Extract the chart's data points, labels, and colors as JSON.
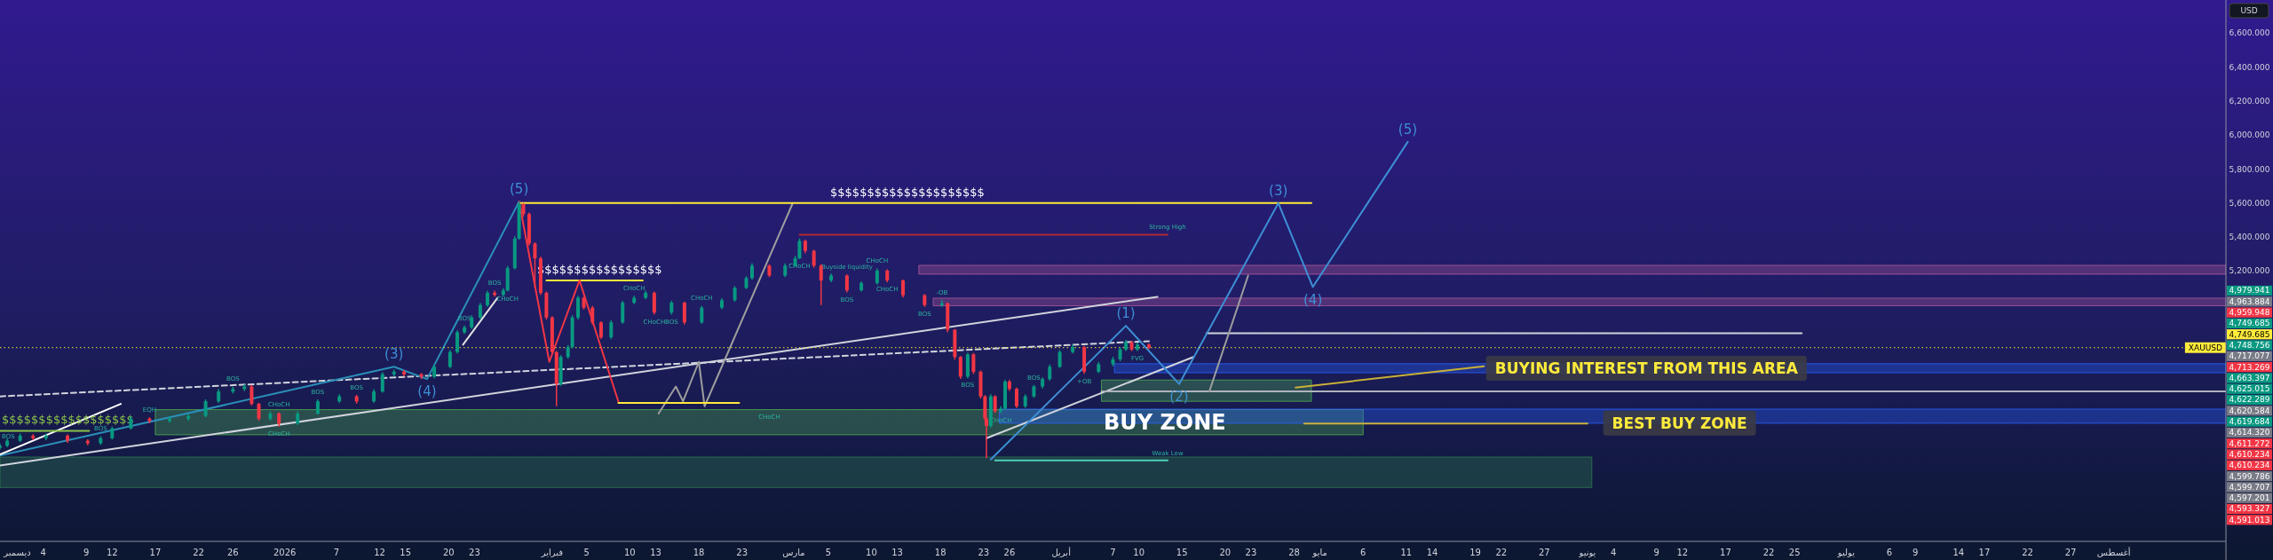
{
  "chart_data": {
    "type": "candlestick",
    "ylabel": "USD",
    "xlim": [
      "2025-11-29",
      "2026-08-14"
    ],
    "ylim": [
      3610,
      6795
    ],
    "xticks": [
      {
        "value": "2025-12-01",
        "label": "ديسمبر"
      },
      {
        "value": "2025-12-04",
        "label": "4"
      },
      {
        "value": "2025-12-09",
        "label": "9"
      },
      {
        "value": "2025-12-12",
        "label": "12"
      },
      {
        "value": "2025-12-17",
        "label": "17"
      },
      {
        "value": "2025-12-22",
        "label": "22"
      },
      {
        "value": "2025-12-26",
        "label": "26"
      },
      {
        "value": "2026-01-01",
        "label": "2026"
      },
      {
        "value": "2026-01-07",
        "label": "7"
      },
      {
        "value": "2026-01-12",
        "label": "12"
      },
      {
        "value": "2026-01-15",
        "label": "15"
      },
      {
        "value": "2026-01-20",
        "label": "20"
      },
      {
        "value": "2026-01-23",
        "label": "23"
      },
      {
        "value": "2026-02-01",
        "label": "فبراير"
      },
      {
        "value": "2026-02-05",
        "label": "5"
      },
      {
        "value": "2026-02-10",
        "label": "10"
      },
      {
        "value": "2026-02-13",
        "label": "13"
      },
      {
        "value": "2026-02-18",
        "label": "18"
      },
      {
        "value": "2026-02-23",
        "label": "23"
      },
      {
        "value": "2026-03-01",
        "label": "مارس"
      },
      {
        "value": "2026-03-05",
        "label": "5"
      },
      {
        "value": "2026-03-10",
        "label": "10"
      },
      {
        "value": "2026-03-13",
        "label": "13"
      },
      {
        "value": "2026-03-18",
        "label": "18"
      },
      {
        "value": "2026-03-23",
        "label": "23"
      },
      {
        "value": "2026-03-26",
        "label": "26"
      },
      {
        "value": "2026-04-01",
        "label": "أبريل"
      },
      {
        "value": "2026-04-07",
        "label": "7"
      },
      {
        "value": "2026-04-10",
        "label": "10"
      },
      {
        "value": "2026-04-15",
        "label": "15"
      },
      {
        "value": "2026-04-20",
        "label": "20"
      },
      {
        "value": "2026-04-23",
        "label": "23"
      },
      {
        "value": "2026-04-28",
        "label": "28"
      },
      {
        "value": "2026-05-01",
        "label": "مايو"
      },
      {
        "value": "2026-05-06",
        "label": "6"
      },
      {
        "value": "2026-05-11",
        "label": "11"
      },
      {
        "value": "2026-05-14",
        "label": "14"
      },
      {
        "value": "2026-05-19",
        "label": "19"
      },
      {
        "value": "2026-05-22",
        "label": "22"
      },
      {
        "value": "2026-05-27",
        "label": "27"
      },
      {
        "value": "2026-06-01",
        "label": "يونيو"
      },
      {
        "value": "2026-06-04",
        "label": "4"
      },
      {
        "value": "2026-06-09",
        "label": "9"
      },
      {
        "value": "2026-06-12",
        "label": "12"
      },
      {
        "value": "2026-06-17",
        "label": "17"
      },
      {
        "value": "2026-06-22",
        "label": "22"
      },
      {
        "value": "2026-06-25",
        "label": "25"
      },
      {
        "value": "2026-07-01",
        "label": "يوليو"
      },
      {
        "value": "2026-07-06",
        "label": "6"
      },
      {
        "value": "2026-07-09",
        "label": "9"
      },
      {
        "value": "2026-07-14",
        "label": "14"
      },
      {
        "value": "2026-07-17",
        "label": "17"
      },
      {
        "value": "2026-07-22",
        "label": "22"
      },
      {
        "value": "2026-07-27",
        "label": "27"
      },
      {
        "value": "2026-08-01",
        "label": "أغسطس"
      }
    ],
    "yticks": [
      {
        "value": 5200,
        "label": "5,200.000"
      },
      {
        "value": 5400,
        "label": "5,400.000"
      },
      {
        "value": 5600,
        "label": "5,600.000"
      },
      {
        "value": 5800,
        "label": "5,800.000"
      },
      {
        "value": 6000,
        "label": "6,000.000"
      },
      {
        "value": 6200,
        "label": "6,200.000"
      },
      {
        "value": 6400,
        "label": "6,400.000"
      },
      {
        "value": 6600,
        "label": "6,600.000"
      }
    ],
    "x": [
      "2025-11-29T00:00",
      "2025-11-29T20:00",
      "2025-12-01T08:00",
      "2025-12-02T20:00",
      "2025-12-04T08:00",
      "2025-12-06T20:00",
      "2025-12-09T04:00",
      "2025-12-10T16:00",
      "2025-12-12T00:00",
      "2025-12-14T04:00",
      "2025-12-16T08:00",
      "2025-12-18T16:00",
      "2025-12-20T20:00",
      "2025-12-22T20:00",
      "2025-12-24T08:00",
      "2025-12-26T00:00",
      "2025-12-27T08:00",
      "2025-12-28T04:00",
      "2025-12-29T00:00",
      "2025-12-30T08:00",
      "2025-12-31T08:00",
      "2026-01-02T12:00",
      "2026-01-04T20:00",
      "2026-01-07T08:00",
      "2026-01-09T08:00",
      "2026-01-11T08:00",
      "2026-01-12T08:00",
      "2026-01-13T16:00",
      "2026-01-14T20:00",
      "2026-01-16T20:00",
      "2026-01-18T08:00",
      "2026-01-20T04:00",
      "2026-01-21T00:00",
      "2026-01-21T20:00",
      "2026-01-22T16:00",
      "2026-01-23T16:00",
      "2026-01-24T12:00",
      "2026-01-25T08:00",
      "2026-01-26T08:00",
      "2026-01-26T20:00",
      "2026-01-27T16:00",
      "2026-01-28T04:00",
      "2026-01-28T16:00",
      "2026-01-29T08:00",
      "2026-01-30T00:00",
      "2026-01-30T16:00",
      "2026-01-31T08:00",
      "2026-02-01T00:00",
      "2026-02-01T12:00",
      "2026-02-02T00:00",
      "2026-02-02T20:00",
      "2026-02-03T08:00",
      "2026-02-04T00:00",
      "2026-02-04T16:00",
      "2026-02-05T16:00",
      "2026-02-06T16:00",
      "2026-02-07T20:00",
      "2026-02-09T04:00",
      "2026-02-10T12:00",
      "2026-02-11T20:00",
      "2026-02-12T20:00",
      "2026-02-14T20:00",
      "2026-02-16T08:00",
      "2026-02-18T08:00",
      "2026-02-20T16:00",
      "2026-02-22T04:00",
      "2026-02-23T12:00",
      "2026-02-24T04:00",
      "2026-02-26T04:00",
      "2026-02-28T00:00",
      "2026-03-01T04:00",
      "2026-03-01T16:00",
      "2026-03-02T08:00",
      "2026-03-03T08:00",
      "2026-03-04T04:00",
      "2026-03-05T08:00",
      "2026-03-07T04:00",
      "2026-03-08T20:00",
      "2026-03-10T16:00",
      "2026-03-11T20:00",
      "2026-03-13T16:00",
      "2026-03-16T04:00",
      "2026-03-18T04:00",
      "2026-03-18T20:00",
      "2026-03-19T16:00",
      "2026-03-20T08:00",
      "2026-03-21T04:00",
      "2026-03-21T20:00",
      "2026-03-22T16:00",
      "2026-03-23T04:00",
      "2026-03-23T08:00",
      "2026-03-23T20:00",
      "2026-03-24T08:00",
      "2026-03-25T00:00",
      "2026-03-25T12:00",
      "2026-03-26T00:00",
      "2026-03-26T20:00",
      "2026-03-27T20:00",
      "2026-03-28T20:00",
      "2026-03-29T20:00",
      "2026-03-30T16:00",
      "2026-03-31T20:00",
      "2026-04-02T08:00",
      "2026-04-03T16:00",
      "2026-04-05T08:00",
      "2026-04-07T00:00",
      "2026-04-07T20:00",
      "2026-04-08T12:00",
      "2026-04-09T04:00",
      "2026-04-09T20:00",
      "2026-04-11T04:00"
    ],
    "ohlc": [
      [
        4160,
        4185,
        4150,
        4173
      ],
      [
        4173,
        4215,
        4165,
        4202
      ],
      [
        4202,
        4245,
        4195,
        4231
      ],
      [
        4231,
        4240,
        4205,
        4217
      ],
      [
        4217,
        4245,
        4205,
        4231
      ],
      [
        4231,
        4240,
        4190,
        4202
      ],
      [
        4202,
        4210,
        4175,
        4187
      ],
      [
        4187,
        4228,
        4178,
        4217
      ],
      [
        4217,
        4285,
        4210,
        4275
      ],
      [
        4275,
        4345,
        4268,
        4332
      ],
      [
        4332,
        4340,
        4305,
        4318
      ],
      [
        4318,
        4345,
        4308,
        4332
      ],
      [
        4332,
        4360,
        4320,
        4347
      ],
      [
        4347,
        4445,
        4340,
        4434
      ],
      [
        4434,
        4505,
        4425,
        4492
      ],
      [
        4492,
        4520,
        4480,
        4506
      ],
      [
        4506,
        4535,
        4495,
        4521
      ],
      [
        4521,
        4530,
        4410,
        4419
      ],
      [
        4419,
        4425,
        4320,
        4332
      ],
      [
        4332,
        4375,
        4320,
        4362
      ],
      [
        4362,
        4370,
        4285,
        4303
      ],
      [
        4303,
        4375,
        4295,
        4362
      ],
      [
        4362,
        4445,
        4355,
        4434
      ],
      [
        4434,
        4475,
        4425,
        4463
      ],
      [
        4463,
        4472,
        4420,
        4434
      ],
      [
        4434,
        4505,
        4425,
        4492
      ],
      [
        4492,
        4605,
        4485,
        4593
      ],
      [
        4593,
        4620,
        4580,
        4608
      ],
      [
        4608,
        4618,
        4580,
        4593
      ],
      [
        4593,
        4600,
        4565,
        4579
      ],
      [
        4579,
        4648,
        4570,
        4637
      ],
      [
        4637,
        4735,
        4630,
        4724
      ],
      [
        4724,
        4852,
        4715,
        4840
      ],
      [
        4840,
        4880,
        4830,
        4869
      ],
      [
        4869,
        4940,
        4860,
        4927
      ],
      [
        4927,
        5012,
        4918,
        5000
      ],
      [
        5000,
        5085,
        4990,
        5072
      ],
      [
        5072,
        5085,
        5050,
        5060
      ],
      [
        5060,
        5100,
        5050,
        5086
      ],
      [
        5086,
        5230,
        5080,
        5217
      ],
      [
        5217,
        5405,
        5210,
        5391
      ],
      [
        5391,
        5609,
        5385,
        5594
      ],
      [
        5594,
        5600,
        5520,
        5536
      ],
      [
        5536,
        5545,
        5350,
        5362
      ],
      [
        5362,
        5370,
        5100,
        5275
      ],
      [
        5275,
        5285,
        5060,
        5072
      ],
      [
        5072,
        5080,
        4915,
        4927
      ],
      [
        4927,
        4935,
        4710,
        4724
      ],
      [
        4724,
        4730,
        4405,
        4536
      ],
      [
        4536,
        4705,
        4525,
        4695
      ],
      [
        4695,
        4765,
        4685,
        4753
      ],
      [
        4753,
        4940,
        4745,
        4927
      ],
      [
        4927,
        5055,
        4915,
        5043
      ],
      [
        5043,
        5050,
        4975,
        4985
      ],
      [
        4985,
        4995,
        4885,
        4898
      ],
      [
        4898,
        4905,
        4800,
        4811
      ],
      [
        4811,
        4910,
        4800,
        4898
      ],
      [
        4898,
        5025,
        4890,
        5014
      ],
      [
        5014,
        5055,
        5005,
        5043
      ],
      [
        5043,
        5085,
        5035,
        5072
      ],
      [
        5072,
        5080,
        4945,
        4956
      ],
      [
        4956,
        5025,
        4945,
        5014
      ],
      [
        5014,
        5020,
        4885,
        4898
      ],
      [
        4898,
        4995,
        4890,
        4985
      ],
      [
        4985,
        5040,
        4975,
        5029
      ],
      [
        5029,
        5112,
        5020,
        5101
      ],
      [
        5101,
        5170,
        5095,
        5159
      ],
      [
        5159,
        5245,
        5150,
        5232
      ],
      [
        5232,
        5240,
        5165,
        5174
      ],
      [
        5174,
        5245,
        5165,
        5232
      ],
      [
        5232,
        5290,
        5225,
        5275
      ],
      [
        5275,
        5391,
        5270,
        5377
      ],
      [
        5377,
        5385,
        5305,
        5319
      ],
      [
        5319,
        5325,
        5220,
        5232
      ],
      [
        5232,
        5240,
        5000,
        5145
      ],
      [
        5145,
        5185,
        5135,
        5174
      ],
      [
        5174,
        5180,
        5075,
        5087
      ],
      [
        5087,
        5140,
        5080,
        5130
      ],
      [
        5130,
        5215,
        5120,
        5203
      ],
      [
        5203,
        5210,
        5135,
        5145
      ],
      [
        5145,
        5150,
        5045,
        5058
      ],
      [
        5058,
        5065,
        4990,
        5000
      ],
      [
        5000,
        5030,
        4990,
        5010
      ],
      [
        5010,
        5015,
        4840,
        4855
      ],
      [
        4855,
        4860,
        4680,
        4695
      ],
      [
        4695,
        4700,
        4565,
        4579
      ],
      [
        4579,
        4720,
        4570,
        4710
      ],
      [
        4710,
        4718,
        4595,
        4608
      ],
      [
        4608,
        4615,
        4450,
        4463
      ],
      [
        4463,
        4470,
        4320,
        4332
      ],
      [
        4332,
        4340,
        4100,
        4289
      ],
      [
        4289,
        4475,
        4280,
        4463
      ],
      [
        4463,
        4470,
        4365,
        4376
      ],
      [
        4376,
        4405,
        4365,
        4391
      ],
      [
        4391,
        4560,
        4385,
        4550
      ],
      [
        4550,
        4560,
        4495,
        4507
      ],
      [
        4507,
        4515,
        4395,
        4405
      ],
      [
        4405,
        4475,
        4395,
        4463
      ],
      [
        4463,
        4530,
        4455,
        4521
      ],
      [
        4521,
        4575,
        4510,
        4565
      ],
      [
        4565,
        4650,
        4555,
        4637
      ],
      [
        4637,
        4735,
        4630,
        4724
      ],
      [
        4724,
        4768,
        4715,
        4753
      ],
      [
        4753,
        4760,
        4595,
        4608
      ],
      [
        4608,
        4665,
        4600,
        4652
      ],
      [
        4652,
        4695,
        4640,
        4681
      ],
      [
        4681,
        4750,
        4670,
        4739
      ],
      [
        4739,
        4795,
        4730,
        4782
      ],
      [
        4782,
        4790,
        4730,
        4739
      ],
      [
        4739,
        4780,
        4730,
        4768
      ],
      [
        4768,
        4775,
        4740,
        4750
      ]
    ],
    "series": [
      {
        "type": "line",
        "x": [
          "2025-11-29",
          "2026-06-01T12:00"
        ],
        "values": [
          null,
          null
        ],
        "upper": [
          4106,
          4106
        ],
        "lower": [
          3927,
          3927
        ],
        "color": "#2e7d4f"
      },
      {
        "type": "line",
        "x": [
          "2025-12-17",
          "2026-05-06"
        ],
        "values": [
          null,
          null
        ],
        "upper": [
          4385,
          4385
        ],
        "lower": [
          4237,
          4237
        ],
        "color": "#4caf50"
      },
      {
        "type": "line",
        "x": [
          "2026-04-05T16:00",
          "2026-04-30"
        ],
        "values": [
          null,
          null
        ],
        "upper": [
          4559,
          4559
        ],
        "lower": [
          4434,
          4434
        ],
        "color": "#4caf50"
      },
      {
        "type": "line",
        "x": [
          "2026-04-07T04:00",
          "2026-08-14"
        ],
        "values": [
          null,
          null
        ],
        "upper": [
          4655,
          4655
        ],
        "lower": [
          4602,
          4602
        ],
        "color": "#2962ff"
      },
      {
        "type": "line",
        "x": [
          "2026-03-24T20:00",
          "2026-08-14"
        ],
        "values": [
          null,
          null
        ],
        "upper": [
          4388,
          4388
        ],
        "lower": [
          4305,
          4305
        ],
        "color": "#2962ff"
      },
      {
        "type": "line",
        "x": [
          "2026-03-15T12:00",
          "2026-08-14"
        ],
        "values": [
          null,
          null
        ],
        "upper": [
          5234,
          5234
        ],
        "lower": [
          5182,
          5182
        ],
        "color": "#b05a9c"
      },
      {
        "type": "line",
        "x": [
          "2026-03-17T04:00",
          "2026-08-14"
        ],
        "values": [
          null,
          null
        ],
        "upper": [
          5041,
          5041
        ],
        "lower": [
          4996,
          4996
        ],
        "color": "#b05a9c"
      },
      {
        "type": "line",
        "x": [
          "2025-11-29",
          "2026-04-12T04:00"
        ],
        "values": [
          4057,
          5049
        ],
        "color": "#d1d4dc"
      },
      {
        "type": "line",
        "x": [
          "2025-11-29",
          "2026-04-11T04:00"
        ],
        "values": [
          4463,
          4788
        ],
        "color": "#d1d4dc",
        "line_style": "dashed"
      },
      {
        "type": "line",
        "x": [
          "2026-03-23T08:00",
          "2026-04-16T08:00"
        ],
        "values": [
          4217,
          4695
        ],
        "color": "#d1d4dc"
      },
      {
        "type": "line",
        "x": [
          "2026-04-17T20:00",
          "2026-06-25T20:00"
        ],
        "values": [
          4834,
          4834
        ],
        "color": "#d1d4dc"
      },
      {
        "type": "line",
        "x": [
          "2026-04-05T16:00",
          "2026-08-14"
        ],
        "values": [
          4492,
          4492
        ],
        "color": "#b0b3bc"
      },
      {
        "type": "line",
        "x": [
          "2026-03-01T16:00",
          "2026-04-13T08:00"
        ],
        "values": [
          5414,
          5414
        ],
        "color": "#b22833"
      },
      {
        "type": "line",
        "x": [
          "2026-03-24T08:00",
          "2026-04-13T08:00"
        ],
        "values": [
          4086,
          4086
        ],
        "color": "#4dd0b5"
      },
      {
        "type": "line",
        "x": [
          "2025-11-29",
          "2026-01-13T16:00",
          "2026-01-17T12:00",
          "2026-01-28T04:00"
        ],
        "values": [
          4115,
          4637,
          4565,
          5609
        ],
        "color": "#2a8fb8"
      },
      {
        "type": "line",
        "x": [
          "2025-11-29",
          "2025-12-13"
        ],
        "values": [
          4121,
          4419
        ],
        "color": "#ffffff"
      },
      {
        "type": "line",
        "x": [
          "2026-01-21T16:00",
          "2026-01-25T16:00"
        ],
        "values": [
          4767,
          5043
        ],
        "color": "#e0e0e0"
      },
      {
        "type": "line",
        "x": [
          "2026-02-13T08:00",
          "2026-02-15T08:00",
          "2026-02-16T04:00",
          "2026-02-18T00:00",
          "2026-02-18T16:00",
          "2026-02-28T20:00"
        ],
        "values": [
          4362,
          4521,
          4434,
          4666,
          4405,
          5594
        ],
        "color": "#9e9e9e"
      },
      {
        "type": "line",
        "x": [
          "2026-04-18T04:00",
          "2026-04-22T16:00"
        ],
        "values": [
          4492,
          5174
        ],
        "color": "#9e9e9e"
      },
      {
        "type": "line",
        "x": [
          "2025-11-29",
          "2025-12-09T08:00"
        ],
        "values": [
          4260,
          4260
        ],
        "color": "#8bc34a"
      },
      {
        "type": "line",
        "x": [
          "2026-01-28T04:00",
          "2026-04-30"
        ],
        "values": [
          5600,
          5600
        ],
        "color": "#ffeb3b"
      },
      {
        "type": "line",
        "x": [
          "2026-01-31T08:00",
          "2026-02-11T12:00"
        ],
        "values": [
          5145,
          5145
        ],
        "color": "#ffeb3b"
      },
      {
        "type": "line",
        "x": [
          "2026-02-08T16:00",
          "2026-02-22T16:00"
        ],
        "values": [
          4425,
          4425
        ],
        "color": "#ffeb3b"
      },
      {
        "type": "line",
        "x": [
          "2026-01-28T04:00",
          "2026-01-31T16:00",
          "2026-02-04T04:00",
          "2026-02-08T16:00"
        ],
        "values": [
          5609,
          4666,
          5145,
          4434
        ],
        "color": "#f23645"
      },
      {
        "type": "line",
        "x": [
          "2026-03-23T20:00",
          "2026-04-08T12:00",
          "2026-04-14T16:00",
          "2026-04-26T04:00",
          "2026-04-30T04:00",
          "2026-05-11T04:00"
        ],
        "values": [
          4092,
          4878,
          4536,
          5600,
          5107,
          5960
        ],
        "color": "#3d8fd6"
      },
      {
        "type": "line",
        "x": [
          "2026-04-28T04:00",
          "2026-05-20"
        ],
        "values": [
          4515,
          4640
        ],
        "color": "#c9b037"
      },
      {
        "type": "line",
        "x": [
          "2026-04-29T04:00",
          "2026-06-01"
        ],
        "values": [
          4303,
          4303
        ],
        "color": "#c9b037"
      }
    ],
    "ref_lines": [
      {
        "axis": "y",
        "value": 4749.685,
        "label": "XAUUSD",
        "color": "#ffeb3b",
        "line_style": "dotted"
      }
    ],
    "annotations": [
      {
        "text": "(5)",
        "x": "2026-01-28T04:00",
        "y": 5609
      },
      {
        "text": "(3)",
        "x": "2026-01-13T16:00",
        "y": 4637
      },
      {
        "text": "(4)",
        "x": "2026-01-17T12:00",
        "y": 4565
      },
      {
        "text": "(1)",
        "x": "2026-04-08T12:00",
        "y": 4878
      },
      {
        "text": "(2)",
        "x": "2026-04-14T16:00",
        "y": 4536
      },
      {
        "text": "(3)",
        "x": "2026-04-26T04:00",
        "y": 5600
      },
      {
        "text": "(4)",
        "x": "2026-04-30T04:00",
        "y": 5107
      },
      {
        "text": "(5)",
        "x": "2026-05-11T04:00",
        "y": 5960
      },
      {
        "text": "BUYING INTEREST FROM THIS AREA",
        "x": "2026-06-07T20:00",
        "y": 4628
      },
      {
        "text": "BEST BUY ZONE",
        "x": "2026-06-11T16:00",
        "y": 4388
      },
      {
        "text": "BUY ZONE",
        "x": "2026-04-13T00:00",
        "y": 4311
      },
      {
        "text": "$$$$$$$$$$$$$$$$$$$$$",
        "x": "2026-03-14T04:00",
        "y": 5600
      },
      {
        "text": "$$$$$$$$$$$$$$$$$",
        "x": "2026-02-06T12:00",
        "y": 5145
      },
      {
        "text": "$$$$$$$$$$$$$$$$$$",
        "x": "2025-12-04T04:00",
        "y": 4260
      },
      {
        "text": "BOS",
        "x": "2025-11-29T00:00",
        "y": 4185
      },
      {
        "text": "BOS",
        "x": "2025-12-10T16:00",
        "y": 4228
      },
      {
        "text": "EQH",
        "x": "2025-12-16T08:00",
        "y": 4340
      },
      {
        "text": "BOS",
        "x": "2025-12-26T00:00",
        "y": 4520
      },
      {
        "text": "CHoCH",
        "x": "2025-12-31T08:00",
        "y": 4285
      },
      {
        "text": "CHoCH",
        "x": "2025-12-31T08:00",
        "y": 4370
      },
      {
        "text": "BOS",
        "x": "2026-01-04T20:00",
        "y": 4445
      },
      {
        "text": "BOS",
        "x": "2026-01-09T08:00",
        "y": 4472
      },
      {
        "text": "BOS",
        "x": "2026-01-21T20:00",
        "y": 4880
      },
      {
        "text": "BOS",
        "x": "2026-01-25T08:00",
        "y": 5085
      },
      {
        "text": "CHoCH",
        "x": "2026-01-26T20:00",
        "y": 5080
      },
      {
        "text": "CHoCH",
        "x": "2026-02-10T12:00",
        "y": 5055
      },
      {
        "text": "CHoCH",
        "x": "2026-02-12T20:00",
        "y": 4945
      },
      {
        "text": "BOS",
        "x": "2026-02-14T20:00",
        "y": 4945
      },
      {
        "text": "CHoCH",
        "x": "2026-02-18T08:00",
        "y": 4995
      },
      {
        "text": "CHoCH",
        "x": "2026-02-26T04:00",
        "y": 4385
      },
      {
        "text": "CHoCH",
        "x": "2026-03-01T16:00",
        "y": 5270
      },
      {
        "text": "Buyside liquidity",
        "x": "2026-03-07T04:00",
        "y": 5180
      },
      {
        "text": "BOS",
        "x": "2026-03-07T04:00",
        "y": 5075
      },
      {
        "text": "CHoCH",
        "x": "2026-03-10T16:00",
        "y": 5215
      },
      {
        "text": "CHoCH",
        "x": "2026-03-11T20:00",
        "y": 5135
      },
      {
        "text": "BOS",
        "x": "2026-03-16T04:00",
        "y": 4990
      },
      {
        "text": "-OB",
        "x": "2026-03-18T04:00",
        "y": 5030
      },
      {
        "text": "BOS",
        "x": "2026-03-21T04:00",
        "y": 4570
      },
      {
        "text": "CHoCH",
        "x": "2026-03-25T00:00",
        "y": 4365
      },
      {
        "text": "BOS",
        "x": "2026-03-28T20:00",
        "y": 4530
      },
      {
        "text": "+OB",
        "x": "2026-04-03T16:00",
        "y": 4595
      },
      {
        "text": "FVG",
        "x": "2026-04-09T20:00",
        "y": 4730
      },
      {
        "text": "Strong High",
        "x": "2026-04-13T08:00",
        "y": 5414
      },
      {
        "text": "Weak Low",
        "x": "2026-04-13T08:00",
        "y": 4086
      },
      "4,979.941",
      "4,963.884",
      "4,959.948",
      "4,749.685",
      "4,749.685",
      "4,748.756",
      "4,717.077",
      "4,713.269",
      "4,663.397",
      "4,625.015",
      "4,622.289",
      "4,620.584",
      "4,619.684",
      "4,614.320",
      "4,611.272",
      "4,610.234",
      "4,610.234",
      "4,599.786",
      "4,599.707",
      "4,597.201",
      "4,593.327",
      "4,591.013"
    ]
  }
}
